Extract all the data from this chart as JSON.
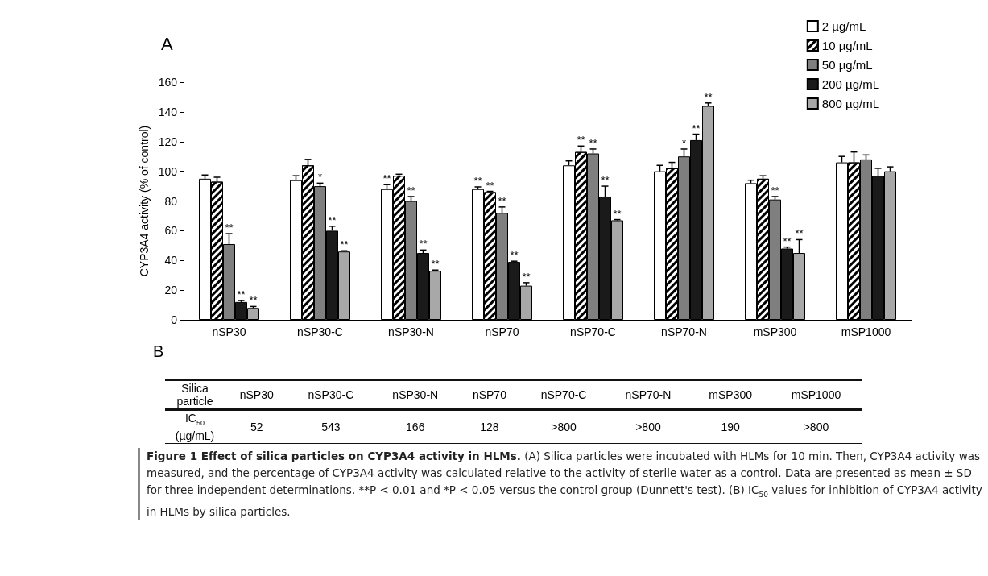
{
  "chart_data": {
    "type": "bar",
    "title": "A",
    "ylabel": "CYP3A4 activity (% of control)",
    "categories": [
      "nSP30",
      "nSP30-C",
      "nSP30-N",
      "nSP70",
      "nSP70-C",
      "nSP70-N",
      "mSP300",
      "mSP1000"
    ],
    "series": [
      {
        "name": "2 µg/mL",
        "color": "#ffffff",
        "values": [
          95,
          94,
          88,
          88,
          104,
          100,
          92,
          106
        ],
        "errors": [
          2.5,
          3,
          3,
          1.5,
          3,
          4,
          2,
          4
        ],
        "value_labels": [
          null,
          null,
          "**",
          "**",
          null,
          null,
          null,
          null
        ]
      },
      {
        "name": "10 µg/mL",
        "color": "#ffffff",
        "values": [
          93,
          104,
          97,
          86,
          113,
          102,
          95,
          106
        ],
        "errors": [
          3,
          4,
          1,
          0.5,
          4,
          4,
          2,
          7
        ],
        "value_labels": [
          null,
          null,
          null,
          "**",
          "**",
          null,
          null,
          null
        ]
      },
      {
        "name": "50 µg/mL",
        "color": "#7f7f7f",
        "values": [
          51,
          90,
          80,
          72,
          112,
          110,
          81,
          108
        ],
        "errors": [
          7,
          2,
          3,
          4,
          3,
          5,
          2,
          3
        ],
        "value_labels": [
          "**",
          "*",
          "**",
          "**",
          "**",
          "*",
          "**",
          null
        ]
      },
      {
        "name": "200 µg/mL",
        "color": "#1a1a1a",
        "values": [
          12,
          60,
          45,
          39,
          83,
          121,
          48,
          97
        ],
        "errors": [
          1,
          3,
          2,
          0.5,
          7,
          4,
          1,
          5
        ],
        "value_labels": [
          "**",
          "**",
          "**",
          "**",
          "**",
          "**",
          "**",
          null
        ]
      },
      {
        "name": "800 µg/mL",
        "color": "#a8a8a8",
        "values": [
          8,
          46,
          33,
          23,
          67,
          144,
          45,
          100
        ],
        "errors": [
          1,
          0.5,
          0.5,
          2,
          0.5,
          2,
          9,
          3
        ],
        "value_labels": [
          "**",
          "**",
          "**",
          "**",
          "**",
          "**",
          "**",
          null
        ]
      }
    ],
    "ylim": [
      0,
      160
    ],
    "yticks": [
      0,
      20,
      40,
      60,
      80,
      100,
      120,
      140,
      160
    ],
    "grid": false,
    "legend": "top right",
    "annotations": [
      "B",
      "Silica particle",
      "nSP30",
      "nSP30-C",
      "nSP30-N",
      "nSP70",
      "nSP70-C",
      "nSP70-N",
      "mSP300",
      "mSP1000",
      "IC$_{50}$ (µg/mL)",
      "52",
      "543",
      "166",
      "128",
      ">800",
      ">800",
      "190",
      ">800",
      "Figure 1 Effect of silica particles on CYP3A4 activity in HLMs.",
      "(A) Silica particles were incubated with HLMs for 10 min. Then, CYP3A4 activity was measured, and the percentage of CYP3A4 activity was calculated relative to the activity of sterile water as a control. Data are presented as mean ± SD for three independent determinations. **P < 0.01 and *P < 0.05 versus the control group (Dunnett's test). (B) IC$_{50}$ values for inhibition of CYP3A4 activity in HLMs by silica particles."
    ]
  }
}
